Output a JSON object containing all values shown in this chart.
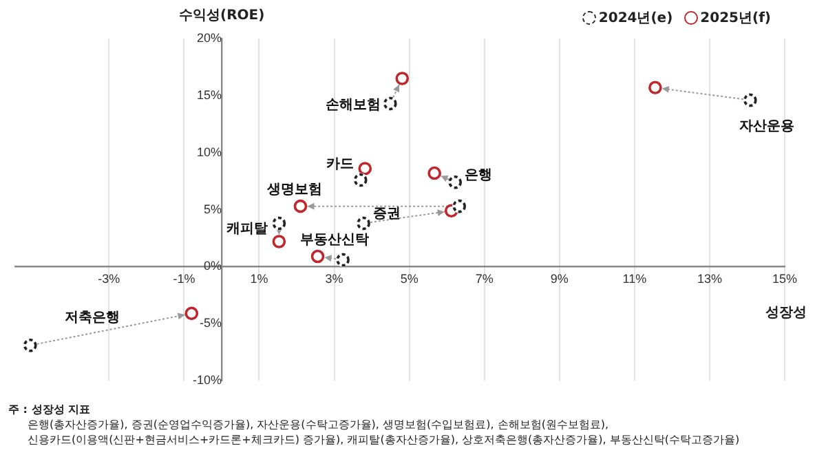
{
  "chart_data": {
    "type": "scatter",
    "xlabel": "성장성",
    "ylabel": "수익성(ROE)",
    "xlim": [
      -5.5,
      15
    ],
    "xticks": [
      {
        "value": -3,
        "label": "-3%"
      },
      {
        "value": -1,
        "label": "-1%"
      },
      {
        "value": 1,
        "label": "1%"
      },
      {
        "value": 3,
        "label": "3%"
      },
      {
        "value": 5,
        "label": "5%"
      },
      {
        "value": 7,
        "label": "7%"
      },
      {
        "value": 9,
        "label": "9%"
      },
      {
        "value": 11,
        "label": "11%"
      },
      {
        "value": 13,
        "label": "13%"
      },
      {
        "value": 15,
        "label": "15%"
      }
    ],
    "ylim": [
      -10,
      20
    ],
    "yticks": [
      {
        "value": -10,
        "label": "-10%"
      },
      {
        "value": -5,
        "label": "-5%"
      },
      {
        "value": 0,
        "label": "0%"
      },
      {
        "value": 5,
        "label": "5%"
      },
      {
        "value": 10,
        "label": "10%"
      },
      {
        "value": 15,
        "label": "15%"
      },
      {
        "value": 20,
        "label": "20%"
      }
    ],
    "grid": "x",
    "legend": "top right",
    "marker": "circle",
    "series": [
      {
        "name": "2024년(e)",
        "color": "#222222",
        "line_style": "dashed",
        "x": [
          4.49,
          14.08,
          3.7,
          6.22,
          6.33,
          3.78,
          1.53,
          3.23,
          -5.1
        ],
        "values": [
          14.3,
          14.6,
          7.6,
          7.4,
          5.3,
          3.8,
          3.8,
          0.6,
          -6.9
        ]
      },
      {
        "name": "2025년(f)",
        "color": "#c0272d",
        "x": [
          4.81,
          11.55,
          3.82,
          5.67,
          2.1,
          6.12,
          1.53,
          2.56,
          -0.8
        ],
        "values": [
          16.5,
          15.7,
          8.6,
          8.2,
          5.3,
          4.9,
          2.2,
          0.9,
          -4.1
        ]
      }
    ],
    "annotations": [
      {
        "text": "손해보험",
        "x": 4.49,
        "y": 14.3
      },
      {
        "text": "자산운용",
        "x": 14.08,
        "y": 14.6
      },
      {
        "text": "카드",
        "x": 3.82,
        "y": 8.6
      },
      {
        "text": "은행",
        "x": 6.22,
        "y": 7.4
      },
      {
        "text": "생명보험",
        "x": 2.1,
        "y": 5.3
      },
      {
        "text": "증권",
        "x": 3.78,
        "y": 3.8
      },
      {
        "text": "캐피탈",
        "x": 1.53,
        "y": 3.8
      },
      {
        "text": "부동산신탁",
        "x": 2.56,
        "y": 0.9
      },
      {
        "text": "저축은행",
        "x": -5.1,
        "y": -6.9
      },
      "주 : 성장성 지표",
      "은행(총자산증가율), 증권(순영업수익증가율), 자산운용(수탁고증가율), 생명보험(수입보험료), 손해보험(원수보험료),",
      "신용카드(이용액(신판+현금서비스+카드론+체크카드) 증가율), 캐피탈(총자산증가율), 상호저축은행(총자산증가율), 부동산신탁(수탁고증가율)"
    ]
  }
}
